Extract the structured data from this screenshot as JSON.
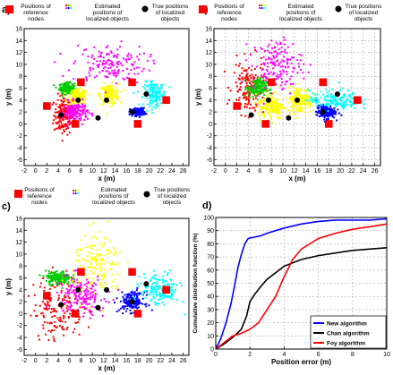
{
  "legend": {
    "ref": "Positions of reference nodes",
    "ref_lines": [
      "Positions of",
      "reference",
      "nodes"
    ],
    "est": "Estimated positions of localized objects",
    "est_lines": [
      "Estimated",
      "positions of",
      "localized objects"
    ],
    "true": "True positions of localized objects",
    "true_lines": [
      "True positions",
      "of localized",
      "objects"
    ]
  },
  "chart_data": [
    {
      "panel": "a)",
      "type": "scatter",
      "xlabel": "x (m)",
      "ylabel": "y (m)",
      "xlim": [
        -2,
        27
      ],
      "ylim": [
        -7,
        16
      ],
      "xticks": [
        -2,
        0,
        2,
        4,
        6,
        8,
        10,
        12,
        14,
        16,
        18,
        20,
        22,
        24,
        26
      ],
      "yticks": [
        -6,
        -4,
        -2,
        0,
        2,
        4,
        6,
        8,
        10,
        12,
        14,
        16
      ],
      "grid": false,
      "reference_nodes": [
        [
          2,
          3
        ],
        [
          7,
          0
        ],
        [
          8,
          7
        ],
        [
          17,
          7
        ],
        [
          18,
          0
        ],
        [
          23,
          4
        ]
      ],
      "true_positions": [
        [
          4.5,
          1.5
        ],
        [
          7.5,
          4
        ],
        [
          11,
          1
        ],
        [
          12.5,
          4
        ],
        [
          17,
          2
        ],
        [
          19.5,
          5
        ]
      ],
      "clusters": [
        {
          "color": "#ff0000",
          "center": [
            5,
            1.5
          ],
          "spread": [
            1.6,
            3
          ]
        },
        {
          "color": "#00cc00",
          "center": [
            5.5,
            6
          ],
          "spread": [
            1.2,
            0.8
          ]
        },
        {
          "color": "#ffff00",
          "center": [
            7.5,
            4.5
          ],
          "spread": [
            1.5,
            1.2
          ]
        },
        {
          "color": "#ffff00",
          "center": [
            13,
            5
          ],
          "spread": [
            1.5,
            1.5
          ]
        },
        {
          "color": "#ff00ff",
          "center": [
            13,
            10
          ],
          "spread": [
            6,
            3
          ]
        },
        {
          "color": "#0000ff",
          "center": [
            18,
            2
          ],
          "spread": [
            1.2,
            0.6
          ]
        },
        {
          "color": "#00ffff",
          "center": [
            21,
            5
          ],
          "spread": [
            1.8,
            1.8
          ]
        },
        {
          "color": "#ff00ff",
          "center": [
            7,
            2
          ],
          "spread": [
            2,
            1.5
          ]
        }
      ]
    },
    {
      "panel": "b)",
      "type": "scatter",
      "xlabel": "x (m)",
      "ylabel": "y (m)",
      "xlim": [
        -2,
        27
      ],
      "ylim": [
        -7,
        16
      ],
      "xticks": [
        -2,
        0,
        2,
        4,
        6,
        8,
        10,
        12,
        14,
        16,
        18,
        20,
        22,
        24,
        26
      ],
      "yticks": [
        -6,
        -4,
        -2,
        0,
        2,
        4,
        6,
        8,
        10,
        12,
        14,
        16
      ],
      "grid": true,
      "reference_nodes": [
        [
          2,
          3
        ],
        [
          7,
          0
        ],
        [
          8,
          7
        ],
        [
          17,
          7
        ],
        [
          18,
          0
        ],
        [
          23,
          4
        ]
      ],
      "true_positions": [
        [
          4.5,
          1.5
        ],
        [
          7.5,
          4
        ],
        [
          11,
          1
        ],
        [
          12.5,
          4
        ],
        [
          17,
          2
        ],
        [
          19.5,
          5
        ]
      ],
      "clusters": [
        {
          "color": "#ff0000",
          "center": [
            4,
            6
          ],
          "spread": [
            2.5,
            4
          ]
        },
        {
          "color": "#00cc00",
          "center": [
            5.5,
            6
          ],
          "spread": [
            1.5,
            1.5
          ]
        },
        {
          "color": "#ffff00",
          "center": [
            8,
            3
          ],
          "spread": [
            2,
            2
          ]
        },
        {
          "color": "#ffff00",
          "center": [
            13,
            4
          ],
          "spread": [
            2,
            2
          ]
        },
        {
          "color": "#ff00ff",
          "center": [
            9,
            10
          ],
          "spread": [
            4,
            4
          ]
        },
        {
          "color": "#0000ff",
          "center": [
            17.5,
            2
          ],
          "spread": [
            1.5,
            1
          ]
        },
        {
          "color": "#00ffff",
          "center": [
            19,
            4
          ],
          "spread": [
            4,
            1.5
          ]
        }
      ]
    },
    {
      "panel": "c)",
      "type": "scatter",
      "xlabel": "x (m)",
      "ylabel": "y (m)",
      "xlim": [
        -2,
        27
      ],
      "ylim": [
        -7,
        16
      ],
      "xticks": [
        -2,
        0,
        2,
        4,
        6,
        8,
        10,
        12,
        14,
        16,
        18,
        20,
        22,
        24,
        26
      ],
      "yticks": [
        -6,
        -4,
        -2,
        0,
        2,
        4,
        6,
        8,
        10,
        12,
        14,
        16
      ],
      "grid": false,
      "reference_nodes": [
        [
          2,
          3
        ],
        [
          7,
          0
        ],
        [
          8,
          7
        ],
        [
          17,
          7
        ],
        [
          18,
          0
        ],
        [
          23,
          4
        ]
      ],
      "true_positions": [
        [
          4.5,
          1.5
        ],
        [
          7.5,
          4
        ],
        [
          11,
          1
        ],
        [
          12.5,
          4
        ],
        [
          17,
          2
        ],
        [
          19.5,
          5
        ]
      ],
      "clusters": [
        {
          "color": "#ff0000",
          "center": [
            4,
            1
          ],
          "spread": [
            4,
            5
          ]
        },
        {
          "color": "#00cc00",
          "center": [
            4,
            6
          ],
          "spread": [
            2,
            1
          ]
        },
        {
          "color": "#ffff00",
          "center": [
            11,
            8
          ],
          "spread": [
            4,
            5
          ]
        },
        {
          "color": "#ff00ff",
          "center": [
            8,
            3
          ],
          "spread": [
            4,
            3
          ]
        },
        {
          "color": "#0000ff",
          "center": [
            17,
            2
          ],
          "spread": [
            2,
            1.5
          ]
        },
        {
          "color": "#00ffff",
          "center": [
            22,
            4
          ],
          "spread": [
            3,
            2.5
          ]
        }
      ]
    },
    {
      "panel": "d)",
      "type": "line",
      "xlabel": "Position error (m)",
      "ylabel": "Cumulative distribution function (%)",
      "xlim": [
        0,
        10
      ],
      "ylim": [
        0,
        100
      ],
      "xticks": [
        0,
        2,
        4,
        6,
        8,
        10
      ],
      "yticks": [
        0,
        10,
        20,
        30,
        40,
        50,
        60,
        70,
        80,
        90,
        100
      ],
      "grid": true,
      "legend_position": "bottom-right",
      "series": [
        {
          "name": "New algorithm",
          "color": "#0000ff",
          "x": [
            0,
            0.3,
            0.6,
            0.9,
            1.1,
            1.3,
            1.5,
            1.7,
            1.9,
            2.2,
            2.6,
            3,
            3.5,
            4,
            5,
            6,
            7,
            8,
            9,
            10
          ],
          "y": [
            0,
            8,
            20,
            35,
            48,
            62,
            72,
            80,
            84,
            85,
            86,
            88,
            90,
            92,
            95,
            97,
            98,
            98,
            98,
            99
          ]
        },
        {
          "name": "Chan algorithm",
          "color": "#000000",
          "x": [
            0,
            0.5,
            1,
            1.5,
            1.8,
            2,
            2.3,
            2.6,
            3,
            3.5,
            4,
            5,
            6,
            7,
            8,
            9,
            10
          ],
          "y": [
            0,
            4,
            9,
            15,
            25,
            36,
            42,
            47,
            53,
            58,
            63,
            68,
            71,
            73,
            75,
            76,
            77
          ]
        },
        {
          "name": "Foy algorithm",
          "color": "#ff0000",
          "x": [
            0,
            0.5,
            1,
            1.5,
            2,
            2.5,
            3,
            3.5,
            4,
            4.5,
            5,
            5.5,
            6,
            7,
            8,
            9,
            10
          ],
          "y": [
            0,
            5,
            10,
            12,
            15,
            20,
            30,
            40,
            55,
            68,
            76,
            80,
            84,
            88,
            91,
            93,
            95
          ]
        }
      ]
    }
  ]
}
